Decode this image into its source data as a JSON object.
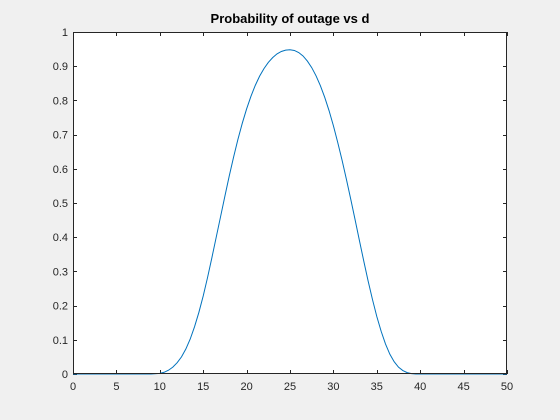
{
  "chart_data": {
    "type": "line",
    "title": "Probability of outage vs d",
    "xlabel": "",
    "ylabel": "",
    "xlim": [
      0,
      50
    ],
    "ylim": [
      0,
      1
    ],
    "xticks": [
      0,
      5,
      10,
      15,
      20,
      25,
      30,
      35,
      40,
      45,
      50
    ],
    "yticks": [
      0,
      0.1,
      0.2,
      0.3,
      0.4,
      0.5,
      0.6,
      0.7,
      0.8,
      0.9,
      1
    ],
    "grid": false,
    "colors": {
      "line": "#0072bd",
      "axes_bg": "#ffffff",
      "figure_bg": "#f0f0f0"
    },
    "series": [
      {
        "x": [
          0,
          2,
          4,
          6,
          8,
          9,
          10,
          10.5,
          11,
          11.5,
          12,
          12.5,
          13,
          13.5,
          14,
          14.5,
          15,
          15.5,
          16,
          16.5,
          17,
          17.5,
          18,
          18.5,
          19,
          19.5,
          20,
          20.5,
          21,
          21.5,
          22,
          22.5,
          23,
          23.5,
          24,
          24.5,
          25,
          25.5,
          26,
          26.5,
          27,
          27.5,
          28,
          28.5,
          29,
          29.5,
          30,
          30.5,
          31,
          31.5,
          32,
          32.5,
          33,
          33.5,
          34,
          34.5,
          35,
          35.5,
          36,
          36.5,
          37,
          37.5,
          38,
          38.5,
          39,
          39.5,
          40,
          41,
          42,
          44,
          46,
          48,
          50
        ],
        "y": [
          0,
          0,
          0,
          0,
          0,
          0,
          0.002,
          0.005,
          0.011,
          0.02,
          0.033,
          0.05,
          0.073,
          0.102,
          0.138,
          0.18,
          0.228,
          0.282,
          0.34,
          0.4,
          0.46,
          0.52,
          0.579,
          0.634,
          0.686,
          0.733,
          0.775,
          0.812,
          0.844,
          0.871,
          0.893,
          0.911,
          0.925,
          0.936,
          0.943,
          0.947,
          0.948,
          0.946,
          0.94,
          0.93,
          0.915,
          0.896,
          0.872,
          0.843,
          0.809,
          0.77,
          0.726,
          0.677,
          0.625,
          0.569,
          0.511,
          0.451,
          0.39,
          0.33,
          0.272,
          0.218,
          0.168,
          0.125,
          0.088,
          0.058,
          0.036,
          0.02,
          0.01,
          0.004,
          0.001,
          0,
          0,
          0,
          0,
          0,
          0,
          0,
          0
        ]
      }
    ]
  }
}
